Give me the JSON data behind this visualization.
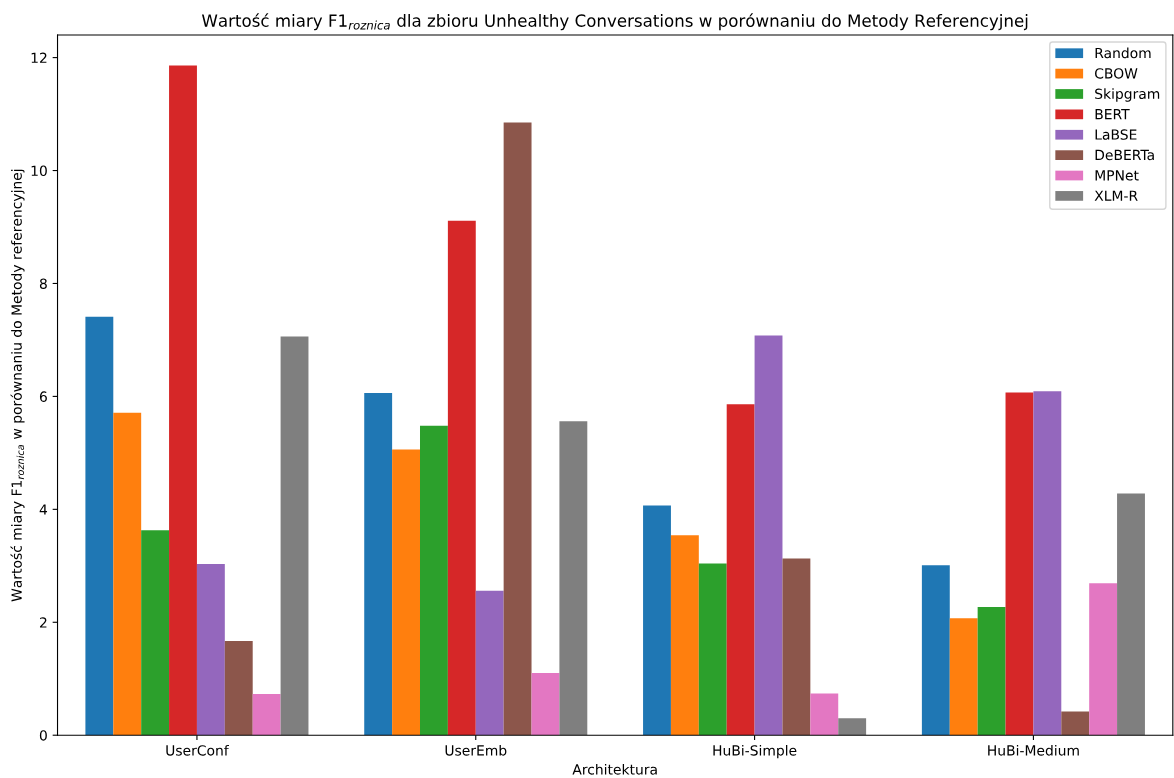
{
  "chart_data": {
    "type": "bar",
    "title": "Wartość miary F1$_{roznica}$ dla zbioru Unhealthy Conversations w porównaniu do Metody Referencyjnej",
    "xlabel": "Architektura",
    "ylabel": "Wartość miary F1$_{roznica}$ w porównaniu do Metody referencyjnej",
    "categories": [
      "UserConf",
      "UserEmb",
      "HuBi-Simple",
      "HuBi-Medium"
    ],
    "series": [
      {
        "name": "Random",
        "color": "#1f77b4",
        "values": [
          7.41,
          6.06,
          4.07,
          3.01
        ]
      },
      {
        "name": "CBOW",
        "color": "#ff7f0e",
        "values": [
          5.71,
          5.06,
          3.54,
          2.07
        ]
      },
      {
        "name": "Skipgram",
        "color": "#2ca02c",
        "values": [
          3.63,
          5.48,
          3.04,
          2.27
        ]
      },
      {
        "name": "BERT",
        "color": "#d62728",
        "values": [
          11.86,
          9.11,
          5.86,
          6.07
        ]
      },
      {
        "name": "LaBSE",
        "color": "#9467bd",
        "values": [
          3.03,
          2.56,
          7.08,
          6.09
        ]
      },
      {
        "name": "DeBERTa",
        "color": "#8c564b",
        "values": [
          1.67,
          10.85,
          3.13,
          0.42
        ]
      },
      {
        "name": "MPNet",
        "color": "#e377c2",
        "values": [
          0.73,
          1.1,
          0.74,
          2.69
        ]
      },
      {
        "name": "XLM-R",
        "color": "#7f7f7f",
        "values": [
          7.06,
          5.56,
          0.3,
          4.28
        ]
      }
    ],
    "ylim": [
      0,
      12.4
    ],
    "yticks": [
      0,
      2,
      4,
      6,
      8,
      10,
      12
    ],
    "grid": false,
    "legend": "top right"
  }
}
